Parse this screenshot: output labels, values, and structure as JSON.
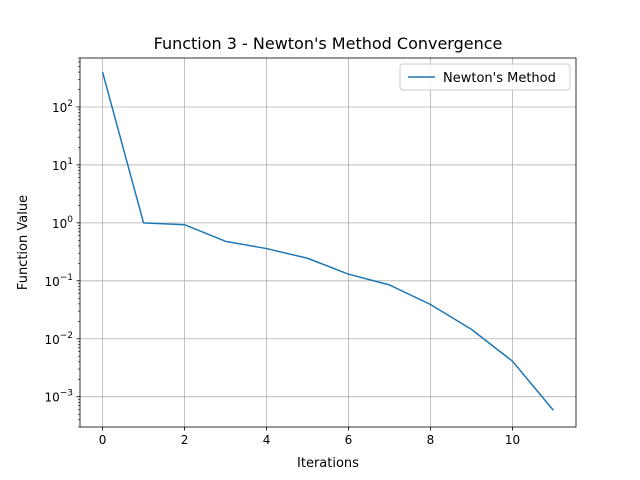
{
  "chart_data": {
    "type": "line",
    "title": "Function 3 - Newton's Method Convergence",
    "xlabel": "Iterations",
    "ylabel": "Function Value",
    "yscale": "log",
    "xlim": [
      -0.55,
      11.55
    ],
    "ylim": [
      0.0003,
      700
    ],
    "grid": true,
    "legend_position": "top-right",
    "xticks": [
      0,
      2,
      4,
      6,
      8,
      10
    ],
    "xtick_labels": [
      "0",
      "2",
      "4",
      "6",
      "8",
      "10"
    ],
    "yticks": [
      0.001,
      0.01,
      0.1,
      1,
      10,
      100
    ],
    "ytick_labels": [
      {
        "base": "10",
        "exp": "−3"
      },
      {
        "base": "10",
        "exp": "−2"
      },
      {
        "base": "10",
        "exp": "−1"
      },
      {
        "base": "10",
        "exp": "0"
      },
      {
        "base": "10",
        "exp": "1"
      },
      {
        "base": "10",
        "exp": "2"
      }
    ],
    "series": [
      {
        "name": "Newton's Method",
        "color": "#1f77b4",
        "x": [
          0,
          1,
          2,
          3,
          4,
          5,
          6,
          7,
          8,
          9,
          10,
          11
        ],
        "y": [
          400,
          1.0,
          0.93,
          0.48,
          0.36,
          0.245,
          0.13,
          0.085,
          0.039,
          0.0145,
          0.0041,
          0.00058
        ]
      }
    ]
  }
}
